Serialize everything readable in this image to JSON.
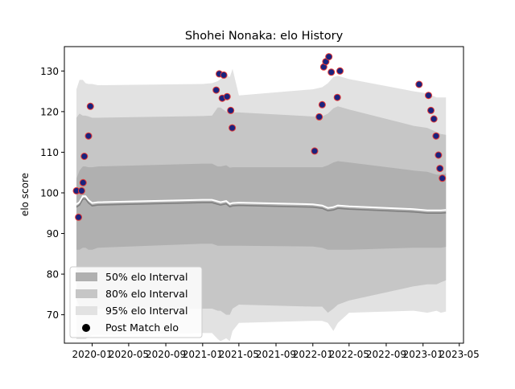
{
  "chart_data": {
    "type": "line",
    "title": "Shohei Nonaka: elo History",
    "xlabel": "",
    "ylabel": "elo score",
    "xlim": [
      "2019-10-01",
      "2023-05-15"
    ],
    "ylim": [
      63,
      136
    ],
    "x_ticks": [
      "2020-01",
      "2020-05",
      "2020-09",
      "2021-01",
      "2021-05",
      "2021-09",
      "2022-01",
      "2022-05",
      "2022-09",
      "2023-01",
      "2023-05"
    ],
    "y_ticks": [
      70,
      80,
      90,
      100,
      110,
      120,
      130
    ],
    "grid": false,
    "legend_position": "lower-left",
    "legend": [
      {
        "label": "50% elo Interval",
        "color": "#b0b0b0"
      },
      {
        "label": "80% elo Interval",
        "color": "#c6c6c6"
      },
      {
        "label": "95% elo Interval",
        "color": "#e2e2e2"
      },
      {
        "label": "Post Match elo",
        "color": "#000000"
      }
    ],
    "band_dates": [
      "2019-11-10",
      "2019-11-20",
      "2019-12-01",
      "2019-12-10",
      "2019-12-20",
      "2020-01-01",
      "2020-01-20",
      "2021-01-01",
      "2021-02-01",
      "2021-02-20",
      "2021-03-01",
      "2021-03-20",
      "2021-04-01",
      "2021-04-10",
      "2021-05-01",
      "2022-01-01",
      "2022-02-01",
      "2022-02-20",
      "2022-03-10",
      "2022-03-25",
      "2022-05-01",
      "2022-12-01",
      "2023-01-15",
      "2023-02-15",
      "2023-03-01",
      "2023-03-18"
    ],
    "mean": [
      96.5,
      97.0,
      98.5,
      98.5,
      97.5,
      96.8,
      97.0,
      97.6,
      97.6,
      97.2,
      97.0,
      97.3,
      96.6,
      96.8,
      96.9,
      96.5,
      96.2,
      95.6,
      95.8,
      96.2,
      96.0,
      95.3,
      95.0,
      95.0,
      95.0,
      95.1
    ],
    "band_50": {
      "lower": [
        86.0,
        86.0,
        86.5,
        86.5,
        86.0,
        86.0,
        86.5,
        87.5,
        87.5,
        87.0,
        87.0,
        87.0,
        87.0,
        87.0,
        87.0,
        86.8,
        86.5,
        86.0,
        86.0,
        86.0,
        86.0,
        86.5,
        86.5,
        86.5,
        86.5,
        86.7
      ],
      "upper": [
        103.5,
        105.5,
        106.5,
        106.5,
        106.3,
        106.3,
        106.5,
        107.2,
        107.2,
        106.5,
        106.5,
        106.8,
        106.2,
        106.3,
        106.3,
        106.3,
        106.3,
        106.8,
        107.5,
        107.8,
        107.5,
        105.5,
        105.2,
        104.5,
        104.5,
        104.8
      ]
    },
    "band_80": {
      "lower": [
        74.0,
        72.0,
        70.5,
        70.5,
        71.0,
        71.5,
        71.5,
        71.5,
        71.5,
        71.0,
        71.0,
        70.0,
        70.0,
        71.5,
        72.5,
        72.0,
        72.0,
        70.5,
        71.5,
        72.5,
        73.5,
        77.0,
        77.5,
        77.5,
        78.0,
        78.5
      ],
      "upper": [
        118.5,
        119.5,
        119.0,
        119.0,
        118.8,
        118.5,
        118.5,
        118.9,
        119.0,
        121.0,
        121.0,
        120.0,
        120.0,
        119.8,
        119.8,
        118.8,
        118.8,
        119.5,
        120.8,
        121.3,
        120.5,
        116.5,
        116.0,
        115.0,
        114.5,
        114.3
      ]
    },
    "band_95": {
      "lower": [
        64.0,
        64.0,
        64.0,
        64.0,
        64.5,
        65.0,
        65.0,
        65.5,
        65.5,
        64.0,
        63.5,
        64.2,
        63.5,
        66.0,
        68.0,
        68.5,
        68.5,
        68.0,
        66.0,
        68.0,
        70.5,
        71.0,
        70.5,
        71.0,
        70.5,
        70.8
      ],
      "upper": [
        125.5,
        127.8,
        127.8,
        127.0,
        126.8,
        126.8,
        126.5,
        126.8,
        127.0,
        127.5,
        128.0,
        129.0,
        128.5,
        130.5,
        124.0,
        125.5,
        126.0,
        127.0,
        128.5,
        128.8,
        128.0,
        125.0,
        124.5,
        123.5,
        123.5,
        123.5
      ]
    },
    "post_match_elo": [
      {
        "date": "2019-11-10",
        "elo": 100.5
      },
      {
        "date": "2019-11-17",
        "elo": 94.0
      },
      {
        "date": "2019-11-27",
        "elo": 100.5
      },
      {
        "date": "2019-12-02",
        "elo": 102.5
      },
      {
        "date": "2019-12-06",
        "elo": 109.0
      },
      {
        "date": "2019-12-20",
        "elo": 114.0
      },
      {
        "date": "2019-12-26",
        "elo": 121.3
      },
      {
        "date": "2021-02-15",
        "elo": 125.3
      },
      {
        "date": "2021-02-25",
        "elo": 129.3
      },
      {
        "date": "2021-03-07",
        "elo": 123.3
      },
      {
        "date": "2021-03-12",
        "elo": 129.0
      },
      {
        "date": "2021-03-23",
        "elo": 123.7
      },
      {
        "date": "2021-04-04",
        "elo": 120.3
      },
      {
        "date": "2021-04-09",
        "elo": 116.0
      },
      {
        "date": "2022-01-07",
        "elo": 110.3
      },
      {
        "date": "2022-01-22",
        "elo": 118.7
      },
      {
        "date": "2022-02-01",
        "elo": 121.7
      },
      {
        "date": "2022-02-06",
        "elo": 131.0
      },
      {
        "date": "2022-02-13",
        "elo": 132.3
      },
      {
        "date": "2022-02-23",
        "elo": 133.5
      },
      {
        "date": "2022-03-03",
        "elo": 129.7
      },
      {
        "date": "2022-03-23",
        "elo": 123.5
      },
      {
        "date": "2022-04-01",
        "elo": 130.0
      },
      {
        "date": "2022-12-19",
        "elo": 126.7
      },
      {
        "date": "2023-01-19",
        "elo": 124.0
      },
      {
        "date": "2023-01-27",
        "elo": 120.3
      },
      {
        "date": "2023-02-06",
        "elo": 118.2
      },
      {
        "date": "2023-02-13",
        "elo": 114.0
      },
      {
        "date": "2023-02-21",
        "elo": 109.3
      },
      {
        "date": "2023-02-26",
        "elo": 106.0
      },
      {
        "date": "2023-03-06",
        "elo": 103.6
      }
    ],
    "colors": {
      "band_50": "#b0b0b0",
      "band_80": "#c6c6c6",
      "band_95": "#e2e2e2",
      "mean_line": "#7f7f7f",
      "point_fill": "#1a237e",
      "point_edge": "#e53935"
    }
  }
}
